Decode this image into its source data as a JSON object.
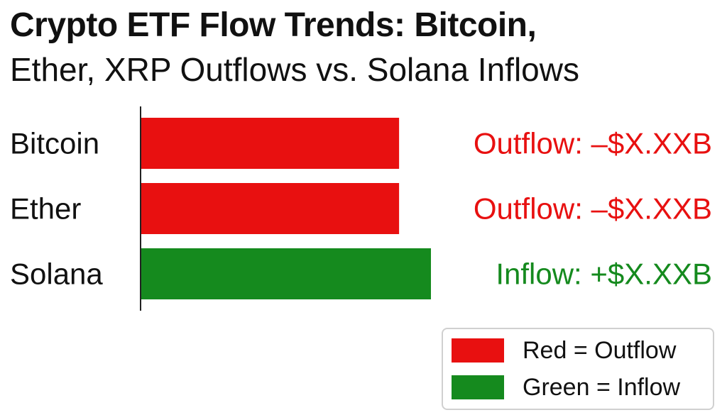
{
  "header": {
    "title": "Crypto ETF Flow Trends: Bitcoin,",
    "subtitle": "Ether, XRP Outflows vs. Solana Inflows"
  },
  "colors": {
    "outflow": "#e81010",
    "inflow": "#158a1e",
    "axis": "#222222",
    "text": "#111111"
  },
  "chart_data": {
    "type": "bar",
    "orientation": "horizontal",
    "title": "Crypto ETF Flow Trends: Bitcoin,",
    "subtitle": "Ether, XRP Outflows vs. Solana Inflows",
    "categories": [
      "Bitcoin",
      "Ether",
      "Solana"
    ],
    "values": [
      0.89,
      0.89,
      1.0
    ],
    "value_unit": "relative bar length (no numeric axis shown)",
    "flow": [
      "outflow",
      "outflow",
      "inflow"
    ],
    "data_labels": [
      "Outflow: –$X.XXB",
      "Outflow: –$X.XXB",
      "Inflow: +$X.XXB"
    ],
    "xlabel": "",
    "ylabel": "",
    "grid": false,
    "legend_position": "bottom-right"
  },
  "legend": {
    "items": [
      {
        "label": "Red = Outflow",
        "color": "#e81010"
      },
      {
        "label": "Green = Inflow",
        "color": "#158a1e"
      }
    ]
  }
}
